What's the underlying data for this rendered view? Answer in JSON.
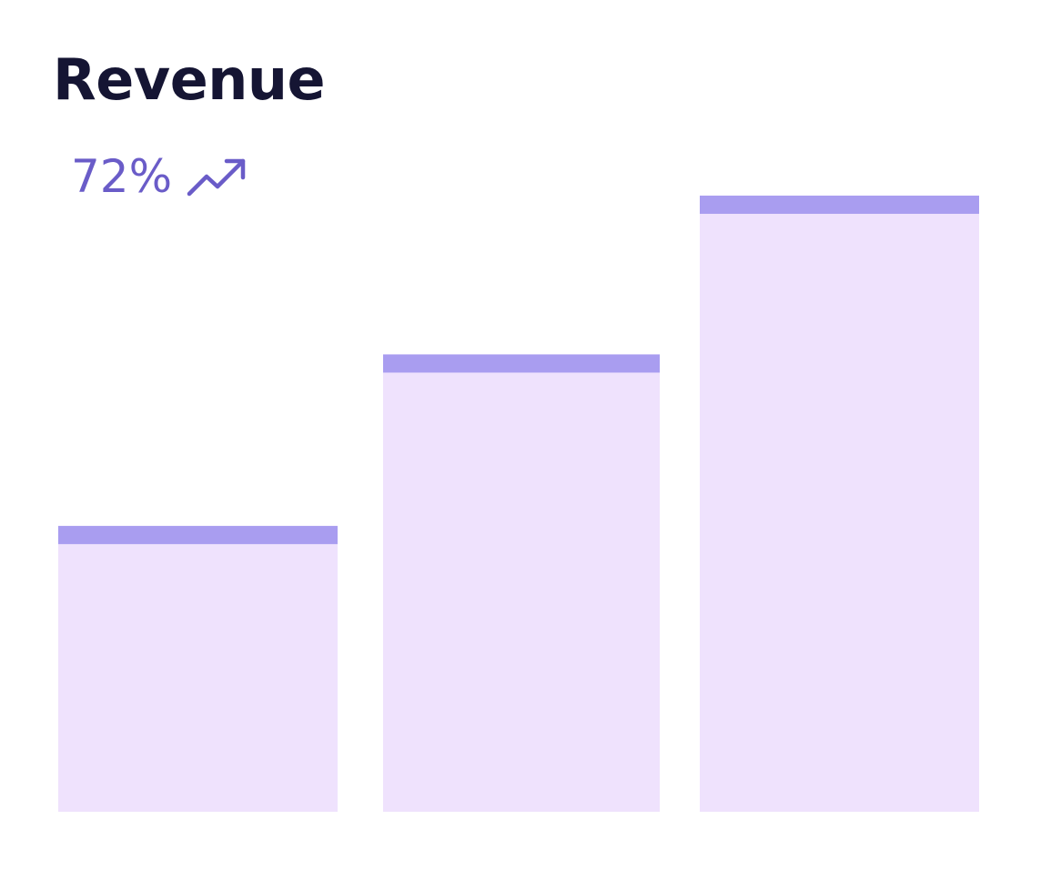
{
  "title": "Revenue",
  "kpi": {
    "value": "72%",
    "icon": "trending-up-icon",
    "color": "#6a5cc8"
  },
  "colors": {
    "title": "#151533",
    "bar_fill": "#efe2fd",
    "bar_cap": "#a99df0"
  },
  "chart_data": {
    "type": "bar",
    "categories": [
      "",
      "",
      ""
    ],
    "values": [
      45,
      72,
      97
    ],
    "ylim": [
      0,
      100
    ],
    "grid": false,
    "legend": "none"
  }
}
